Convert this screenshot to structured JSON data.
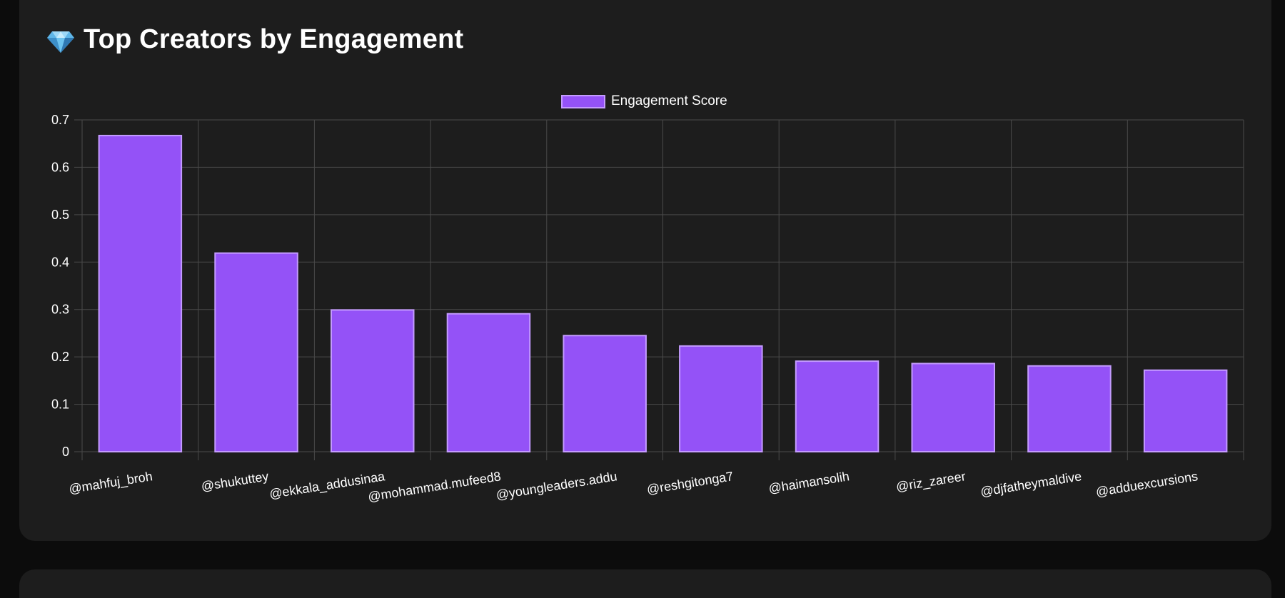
{
  "header": {
    "title": "Top Creators by Engagement",
    "icon": "gem-icon"
  },
  "colors": {
    "bar_fill": "#9452f7",
    "bar_border": "#c49bff",
    "card_bg": "#1d1d1d",
    "page_bg": "#0c0c0c",
    "grid": "#4a4a4a",
    "text": "#ffffff"
  },
  "chart_data": {
    "type": "bar",
    "categories": [
      "@mahfuj_broh",
      "@shukuttey",
      "@ekkala_addusinaa",
      "@mohammad.mufeed8",
      "@youngleaders.addu",
      "@reshgitonga7",
      "@haimansolih",
      "@riz_zareer",
      "@djfatheymaldive",
      "@adduexcursions"
    ],
    "series": [
      {
        "name": "Engagement Score",
        "values": [
          0.667,
          0.419,
          0.299,
          0.291,
          0.245,
          0.223,
          0.191,
          0.186,
          0.181,
          0.172
        ]
      }
    ],
    "ylim": [
      0,
      0.7
    ],
    "yticks": [
      "0",
      "0.1",
      "0.2",
      "0.3",
      "0.4",
      "0.5",
      "0.6",
      "0.7"
    ],
    "grid": true,
    "legend_position": "top-center",
    "xlabel": "",
    "ylabel": ""
  }
}
